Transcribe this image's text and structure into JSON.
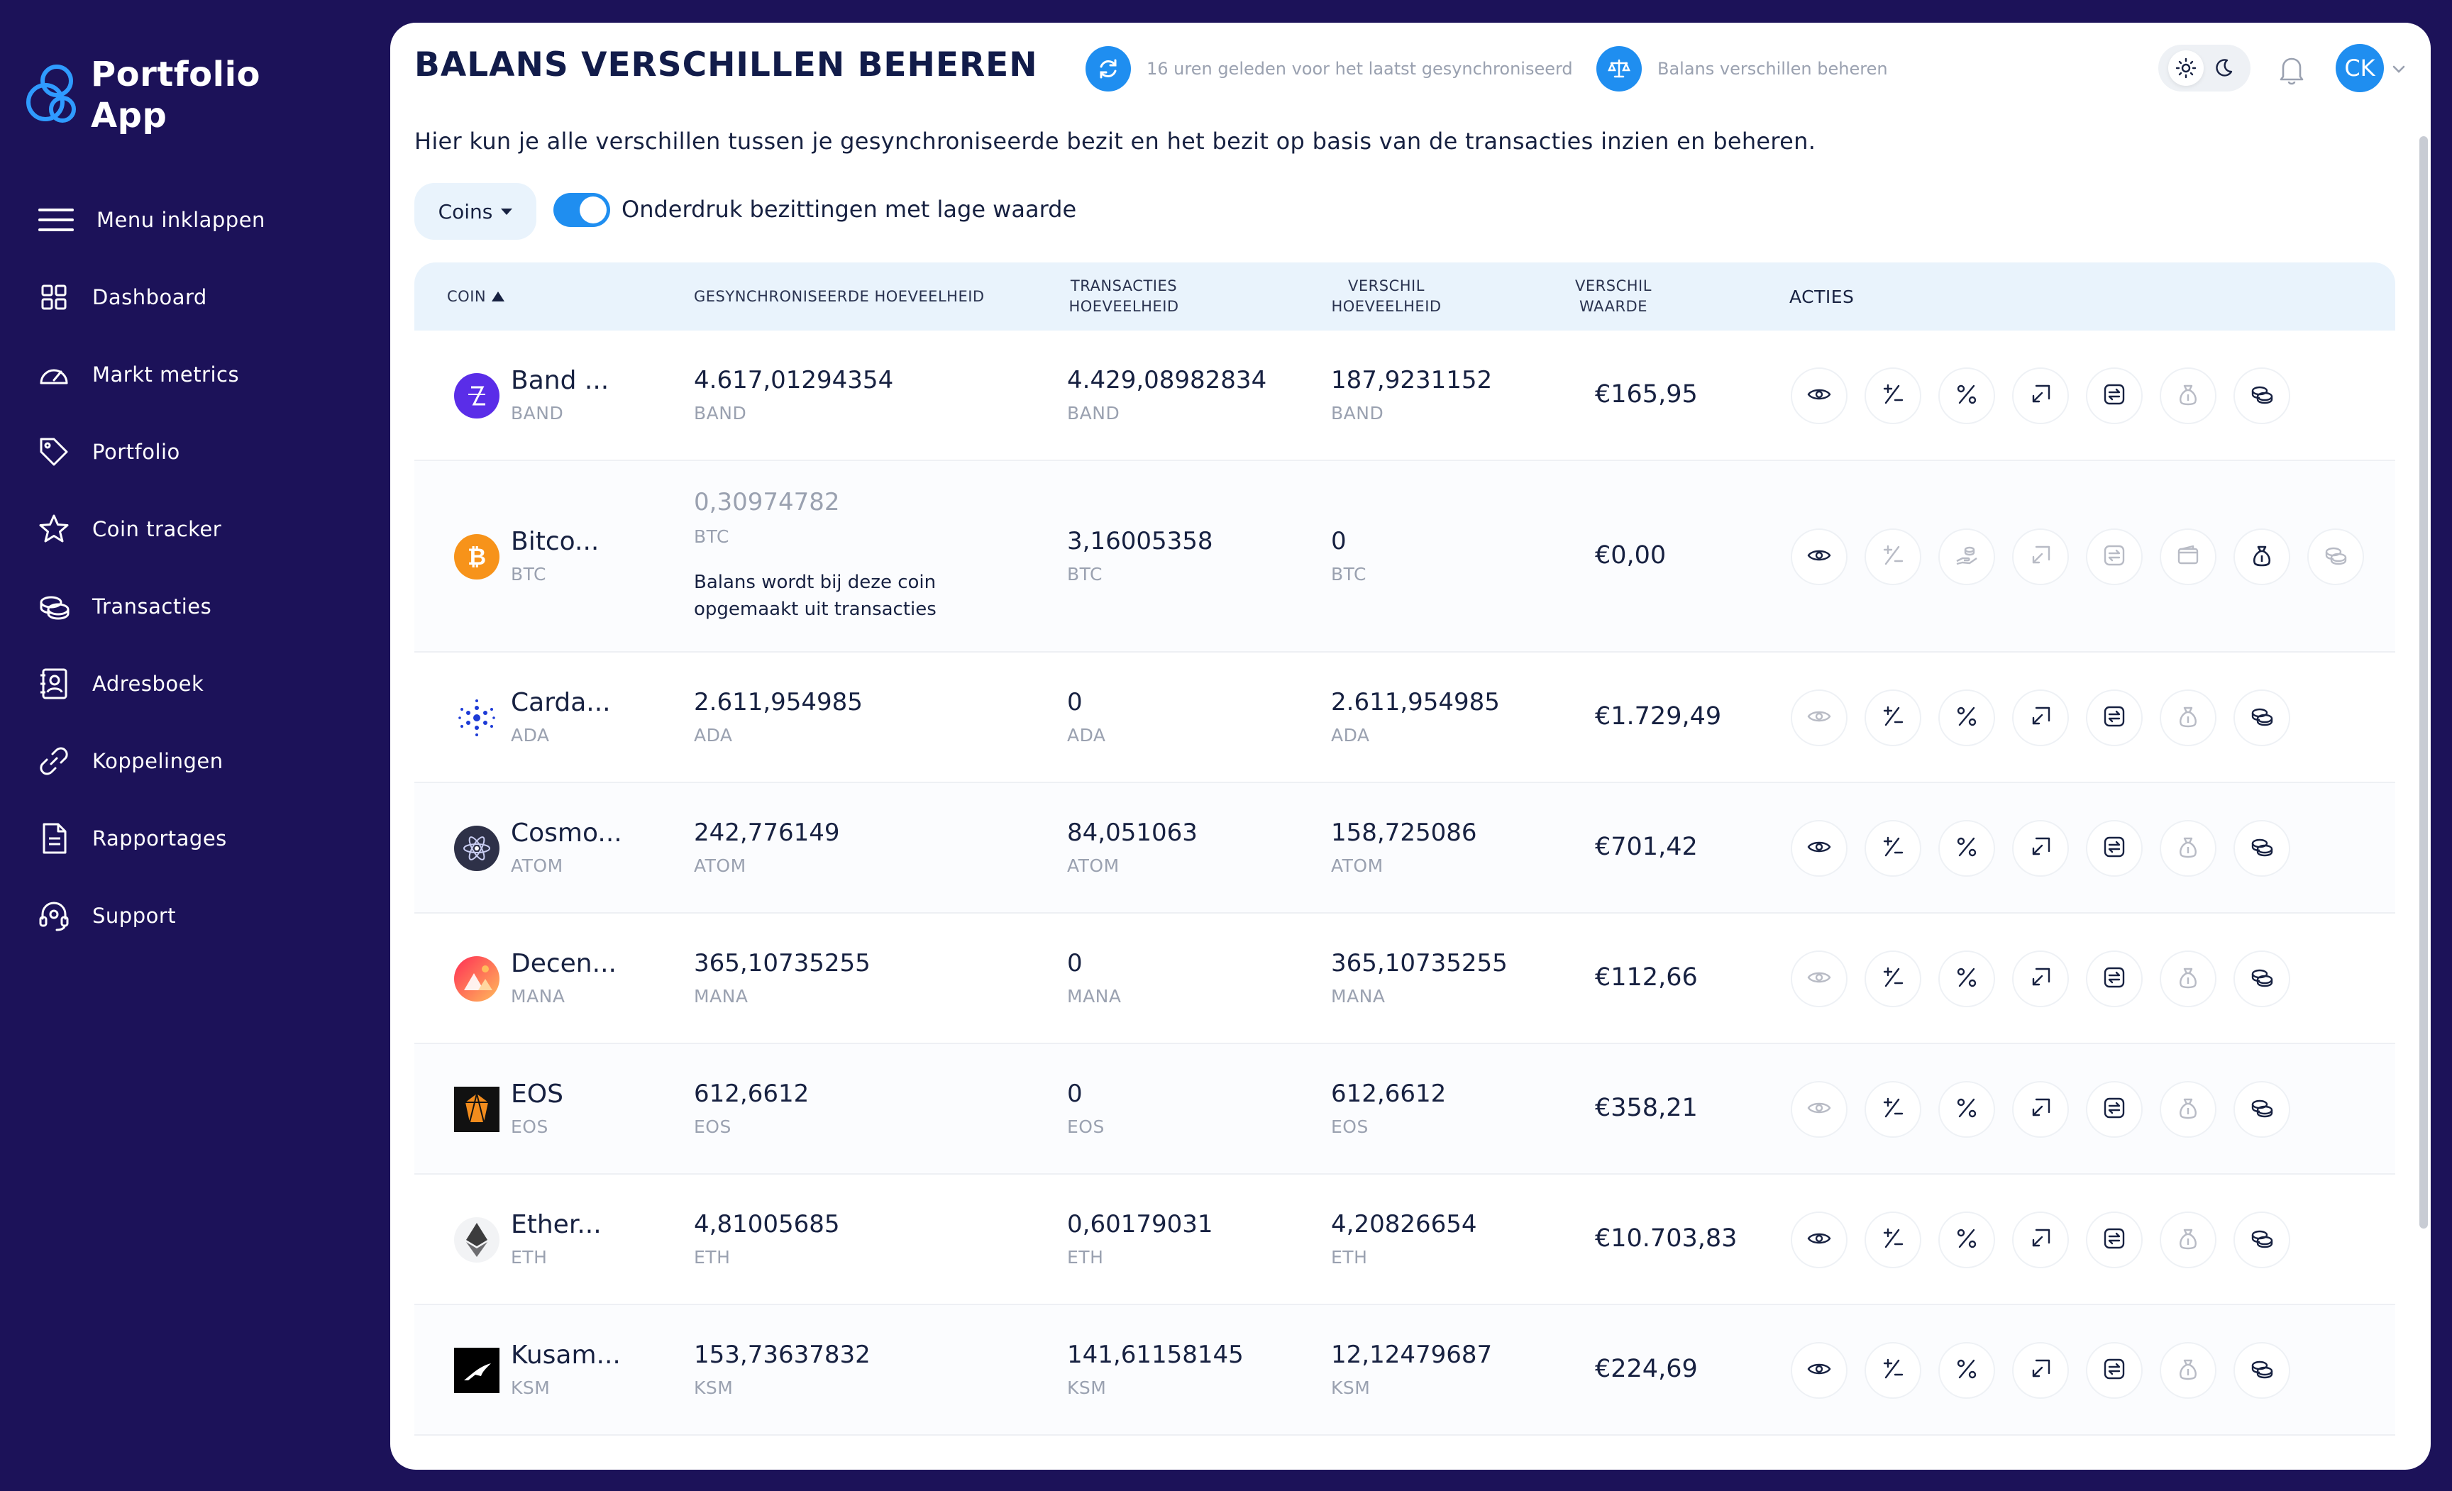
{
  "app": {
    "name_line1": "Portfolio",
    "name_line2": "App"
  },
  "sidebar": {
    "items": [
      {
        "label": "Menu inklappen",
        "icon": "menu-icon"
      },
      {
        "label": "Dashboard",
        "icon": "dashboard-icon"
      },
      {
        "label": "Markt metrics",
        "icon": "gauge-icon"
      },
      {
        "label": "Portfolio",
        "icon": "tag-icon"
      },
      {
        "label": "Coin tracker",
        "icon": "star-icon"
      },
      {
        "label": "Transacties",
        "icon": "coins-icon"
      },
      {
        "label": "Adresboek",
        "icon": "contact-book-icon"
      },
      {
        "label": "Koppelingen",
        "icon": "link-icon"
      },
      {
        "label": "Rapportages",
        "icon": "report-icon"
      },
      {
        "label": "Support",
        "icon": "headset-icon"
      }
    ]
  },
  "header": {
    "title": "BALANS VERSCHILLEN BEHEREN",
    "sync_text": "16 uren geleden voor het laatst gesynchroniseerd",
    "balance_text": "Balans verschillen beheren",
    "avatar_initials": "CK"
  },
  "page": {
    "description": "Hier kun je alle verschillen tussen je gesynchroniseerde bezit en het bezit op basis van de transacties inzien en beheren.",
    "filter_label": "Coins",
    "toggle_label": "Onderdruk bezittingen met lage waarde"
  },
  "table": {
    "headers": {
      "coin": "COIN",
      "synced": "GESYNCHRONISEERDE HOEVEELHEID",
      "tx_line1": "TRANSACTIES",
      "tx_line2": "HOEVEELHEID",
      "diff_line1": "VERSCHIL",
      "diff_line2": "HOEVEELHEID",
      "worth_line1": "VERSCHIL",
      "worth_line2": "WAARDE",
      "actions": "ACTIES"
    },
    "rows": [
      {
        "name": "Band ...",
        "symbol": "BAND",
        "synced": "4.617,01294354",
        "tx": "4.429,08982834",
        "diff": "187,9231152",
        "worth": "€165,95"
      },
      {
        "name": "Bitco...",
        "symbol": "BTC",
        "synced": "0,30974782",
        "tx": "3,16005358",
        "diff": "0",
        "worth": "€0,00",
        "note": "Balans wordt bij deze coin opgemaakt uit transacties"
      },
      {
        "name": "Carda...",
        "symbol": "ADA",
        "synced": "2.611,954985",
        "tx": "0",
        "diff": "2.611,954985",
        "worth": "€1.729,49"
      },
      {
        "name": "Cosmo...",
        "symbol": "ATOM",
        "synced": "242,776149",
        "tx": "84,051063",
        "diff": "158,725086",
        "worth": "€701,42"
      },
      {
        "name": "Decen...",
        "symbol": "MANA",
        "synced": "365,10735255",
        "tx": "0",
        "diff": "365,10735255",
        "worth": "€112,66"
      },
      {
        "name": "EOS",
        "symbol": "EOS",
        "synced": "612,6612",
        "tx": "0",
        "diff": "612,6612",
        "worth": "€358,21"
      },
      {
        "name": "Ether...",
        "symbol": "ETH",
        "synced": "4,81005685",
        "tx": "0,60179031",
        "diff": "4,20826654",
        "worth": "€10.703,83"
      },
      {
        "name": "Kusam...",
        "symbol": "KSM",
        "synced": "153,73637832",
        "tx": "141,61158145",
        "diff": "12,12479687",
        "worth": "€224,69"
      }
    ]
  },
  "colors": {
    "sidebar": "#1c1259",
    "accent": "#1f8ef0",
    "header_bg": "#e9f3fc"
  }
}
